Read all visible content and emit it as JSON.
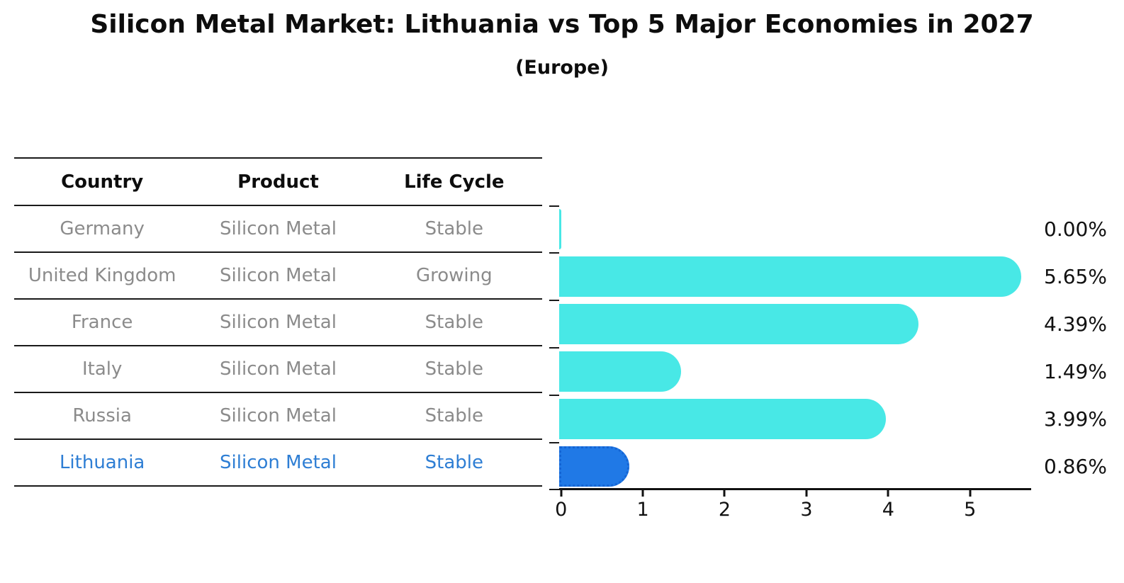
{
  "title": "Silicon Metal Market: Lithuania vs Top 5 Major Economies in 2027",
  "subtitle": "(Europe)",
  "table": {
    "headers": [
      "Country",
      "Product",
      "Life Cycle"
    ],
    "rows": [
      {
        "country": "Germany",
        "product": "Silicon Metal",
        "life_cycle": "Stable",
        "highlight": false
      },
      {
        "country": "United Kingdom",
        "product": "Silicon Metal",
        "life_cycle": "Growing",
        "highlight": false
      },
      {
        "country": "France",
        "product": "Silicon Metal",
        "life_cycle": "Stable",
        "highlight": false
      },
      {
        "country": "Italy",
        "product": "Silicon Metal",
        "life_cycle": "Stable",
        "highlight": false
      },
      {
        "country": "Russia",
        "product": "Silicon Metal",
        "life_cycle": "Stable",
        "highlight": false
      },
      {
        "country": "Lithuania",
        "product": "Silicon Metal",
        "life_cycle": "Stable",
        "highlight": true
      }
    ]
  },
  "chart_data": {
    "type": "bar",
    "orientation": "horizontal",
    "title": "Silicon Metal Market: Lithuania vs Top 5 Major Economies in 2027",
    "subtitle": "(Europe)",
    "categories": [
      "Germany",
      "United Kingdom",
      "France",
      "Italy",
      "Russia",
      "Lithuania"
    ],
    "values": [
      0.0,
      5.65,
      4.39,
      1.49,
      3.99,
      0.86
    ],
    "value_labels": [
      "0.00%",
      "5.65%",
      "4.39%",
      "1.49%",
      "3.99%",
      "0.86%"
    ],
    "xticks": [
      "0",
      "1",
      "2",
      "3",
      "4",
      "5"
    ],
    "xlim": [
      0,
      5.77
    ],
    "grid": false,
    "legend": "none",
    "bar_color": "#48E8E6",
    "highlight_index": 5,
    "highlight_color": "#2079E6",
    "highlight_border_color": "#1565D4"
  }
}
